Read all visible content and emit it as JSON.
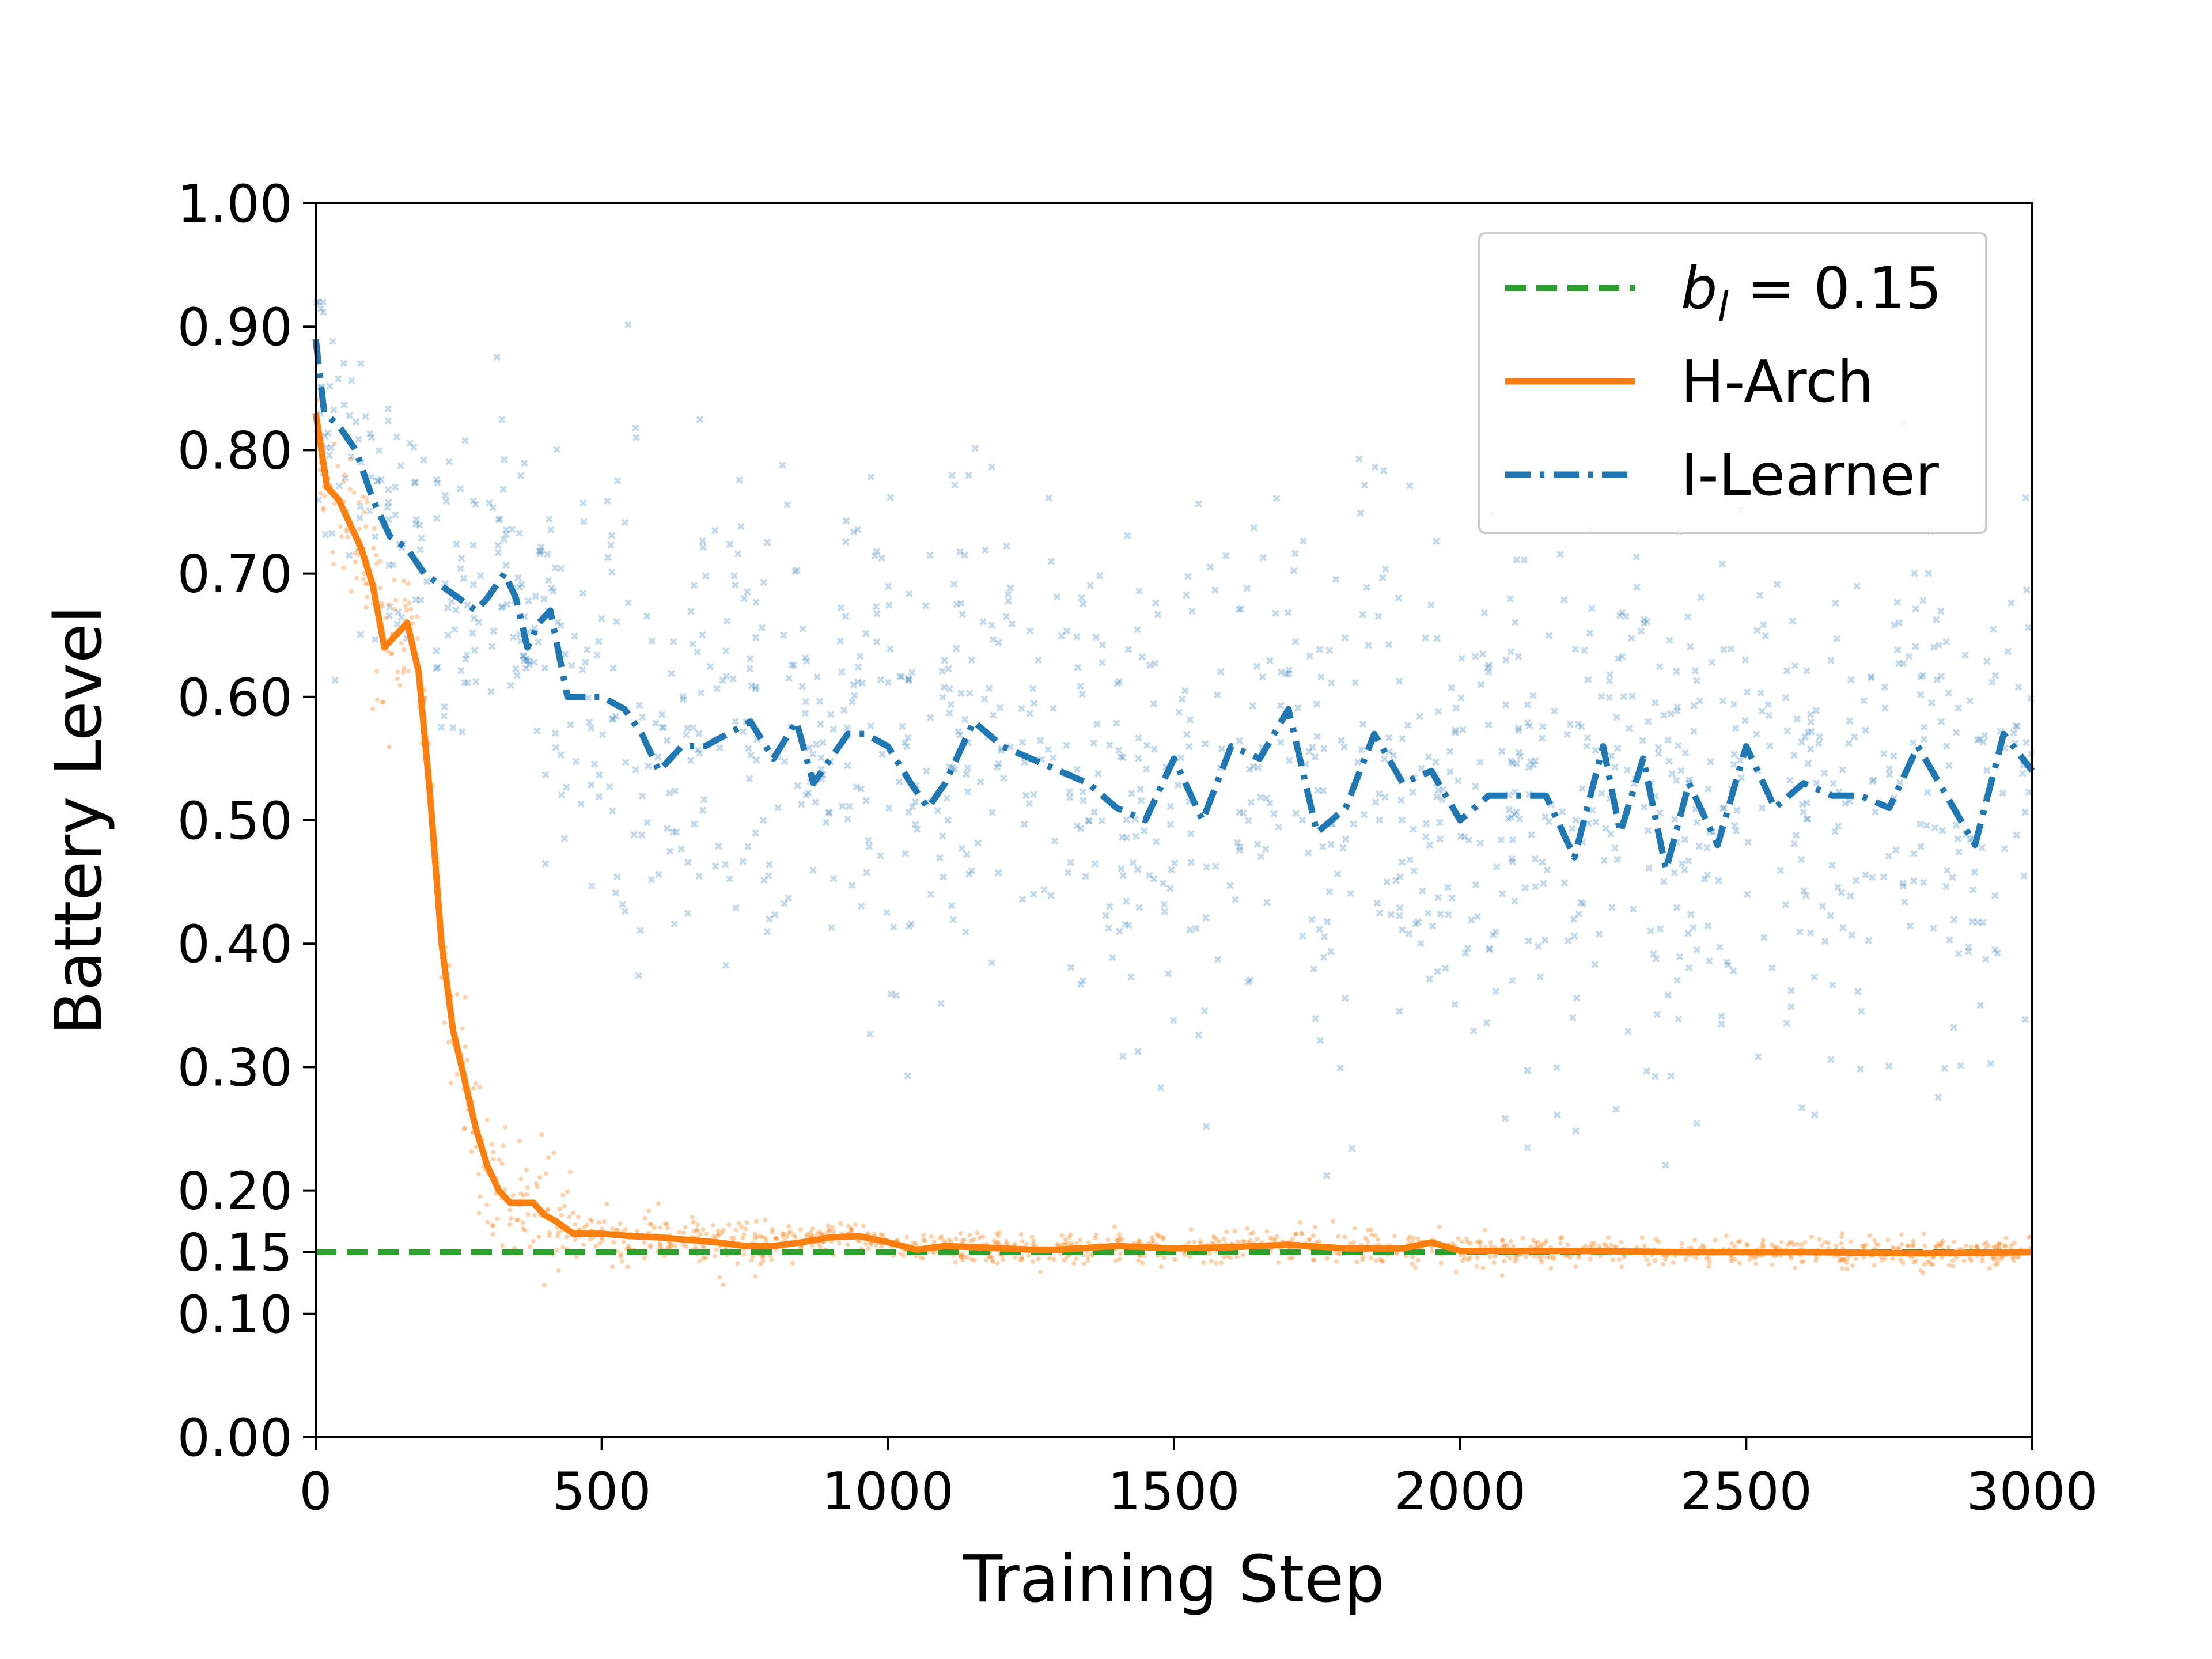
{
  "chart_data": {
    "type": "line",
    "title": "",
    "xlabel": "Training Step",
    "ylabel": "Battery Level",
    "xlim": [
      0,
      3000
    ],
    "ylim": [
      0,
      1.0
    ],
    "xticks": [
      0,
      500,
      1000,
      1500,
      2000,
      2500,
      3000
    ],
    "xtick_labels": [
      "0",
      "500",
      "1000",
      "1500",
      "2000",
      "2500",
      "3000"
    ],
    "yticks": [
      0.0,
      0.1,
      0.15,
      0.2,
      0.3,
      0.4,
      0.5,
      0.6,
      0.7,
      0.8,
      0.9,
      1.0
    ],
    "ytick_labels": [
      "0.00",
      "0.10",
      "0.15",
      "0.20",
      "0.30",
      "0.40",
      "0.50",
      "0.60",
      "0.70",
      "0.80",
      "0.90",
      "1.00"
    ],
    "grid": false,
    "legend_position": "top-right",
    "series": [
      {
        "name": "b_l = 0.15",
        "legend_label": {
          "base": "b",
          "sub": "l",
          "rest": " = 0.15"
        },
        "style": "dashed",
        "color": "#2ca02c",
        "x": [
          0,
          3000
        ],
        "y": [
          0.15,
          0.15
        ]
      },
      {
        "name": "H-Arch",
        "style": "solid",
        "color": "#ff7f0e",
        "x": [
          0,
          20,
          40,
          60,
          80,
          100,
          120,
          140,
          160,
          180,
          200,
          220,
          240,
          260,
          280,
          300,
          320,
          340,
          360,
          380,
          400,
          420,
          450,
          500,
          550,
          600,
          650,
          700,
          750,
          800,
          850,
          900,
          950,
          1000,
          1050,
          1100,
          1150,
          1200,
          1250,
          1300,
          1400,
          1500,
          1600,
          1700,
          1800,
          1900,
          1950,
          2000,
          2200,
          2400,
          2600,
          2800,
          3000
        ],
        "y": [
          0.83,
          0.77,
          0.76,
          0.74,
          0.72,
          0.69,
          0.64,
          0.65,
          0.66,
          0.62,
          0.52,
          0.4,
          0.33,
          0.29,
          0.25,
          0.22,
          0.2,
          0.19,
          0.19,
          0.19,
          0.18,
          0.175,
          0.165,
          0.165,
          0.163,
          0.162,
          0.16,
          0.158,
          0.155,
          0.155,
          0.158,
          0.162,
          0.163,
          0.158,
          0.152,
          0.155,
          0.154,
          0.153,
          0.152,
          0.152,
          0.155,
          0.153,
          0.154,
          0.156,
          0.153,
          0.153,
          0.158,
          0.151,
          0.151,
          0.15,
          0.15,
          0.149,
          0.15
        ]
      },
      {
        "name": "I-Learner",
        "style": "dashdot",
        "color": "#1f77b4",
        "x": [
          0,
          15,
          40,
          70,
          100,
          130,
          160,
          190,
          220,
          250,
          280,
          300,
          330,
          350,
          370,
          390,
          410,
          440,
          470,
          500,
          540,
          570,
          600,
          640,
          680,
          720,
          760,
          800,
          840,
          870,
          900,
          930,
          960,
          1000,
          1040,
          1070,
          1100,
          1150,
          1200,
          1250,
          1300,
          1350,
          1400,
          1450,
          1500,
          1550,
          1600,
          1650,
          1700,
          1750,
          1800,
          1850,
          1900,
          1950,
          2000,
          2050,
          2100,
          2150,
          2200,
          2250,
          2280,
          2320,
          2360,
          2400,
          2450,
          2500,
          2550,
          2600,
          2650,
          2700,
          2750,
          2800,
          2850,
          2900,
          2950,
          3000
        ],
        "y": [
          0.89,
          0.83,
          0.82,
          0.8,
          0.76,
          0.73,
          0.72,
          0.7,
          0.69,
          0.68,
          0.67,
          0.68,
          0.7,
          0.68,
          0.64,
          0.66,
          0.67,
          0.6,
          0.6,
          0.6,
          0.59,
          0.57,
          0.54,
          0.56,
          0.56,
          0.57,
          0.58,
          0.55,
          0.58,
          0.53,
          0.55,
          0.57,
          0.57,
          0.56,
          0.53,
          0.51,
          0.53,
          0.58,
          0.56,
          0.55,
          0.54,
          0.53,
          0.51,
          0.5,
          0.55,
          0.5,
          0.56,
          0.55,
          0.59,
          0.49,
          0.51,
          0.57,
          0.53,
          0.54,
          0.5,
          0.52,
          0.52,
          0.52,
          0.47,
          0.56,
          0.49,
          0.55,
          0.46,
          0.53,
          0.48,
          0.56,
          0.51,
          0.53,
          0.52,
          0.52,
          0.51,
          0.56,
          0.52,
          0.48,
          0.57,
          0.54
        ]
      }
    ]
  }
}
